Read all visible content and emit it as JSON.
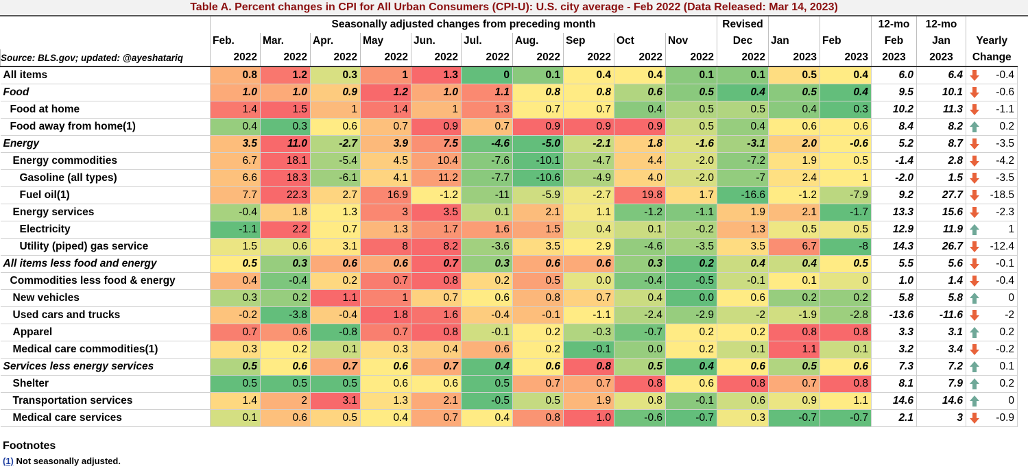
{
  "title": "Table A. Percent changes in CPI for All Urban Consumers (CPI-U): U.S. city average - Feb 2022 (Data Released: Mar 14, 2023)",
  "source_note": "Source: BLS.gov; updated: @ayeshatariq",
  "header": {
    "group": "Seasonally adjusted changes from preceding month",
    "months_top": [
      "Feb.",
      "Mar.",
      "Apr.",
      "May",
      "Jun.",
      "Jul.",
      "Aug.",
      "Sep",
      "Oct",
      "Nov"
    ],
    "months_year": [
      "2022",
      "2022",
      "2022",
      "2022",
      "2022",
      "2022",
      "2022",
      "2022",
      "2022",
      "2022"
    ],
    "revised_top": "Revised",
    "revised_mid": "Dec",
    "revised_year": "2022",
    "jan_top": "Jan",
    "jan_year": "2023",
    "feb_top": "Feb",
    "feb_year": "2023",
    "mo12_feb": [
      "12-mo",
      "Feb",
      "2023"
    ],
    "mo12_jan": [
      "12-mo",
      "Jan",
      "2023"
    ],
    "yearly": [
      "Yearly",
      "Change"
    ]
  },
  "colors": {
    "high": "#f8696b",
    "mid": "#ffeb84",
    "low": "#63be7b",
    "arrow_up": "#6fa898",
    "arrow_down": "#e8623a"
  },
  "rows": [
    {
      "label": "All items",
      "indent": 0,
      "style": "bold",
      "monthly": [
        "0.8",
        "1.2",
        "0.3",
        "1",
        "1.3",
        "0",
        "0.1",
        "0.4",
        "0.4",
        "0.1",
        "0.1",
        "0.5",
        "0.4"
      ],
      "mo12_feb": "6.0",
      "mo12_jan": "6.4",
      "yearly": "-0.4",
      "dir": "down"
    },
    {
      "label": "Food",
      "indent": 0,
      "style": "bolditalic",
      "monthly": [
        "1.0",
        "1.0",
        "0.9",
        "1.2",
        "1.0",
        "1.1",
        "0.8",
        "0.8",
        "0.6",
        "0.5",
        "0.4",
        "0.5",
        "0.4"
      ],
      "mo12_feb": "9.5",
      "mo12_jan": "10.1",
      "yearly": "-0.6",
      "dir": "down"
    },
    {
      "label": "Food at home",
      "indent": 1,
      "style": "normal",
      "monthly": [
        "1.4",
        "1.5",
        "1",
        "1.4",
        "1",
        "1.3",
        "0.7",
        "0.7",
        "0.4",
        "0.5",
        "0.5",
        "0.4",
        "0.3"
      ],
      "mo12_feb": "10.2",
      "mo12_jan": "11.3",
      "yearly": "-1.1",
      "dir": "down"
    },
    {
      "label": "Food away from home(1)",
      "indent": 1,
      "style": "normal",
      "monthly": [
        "0.4",
        "0.3",
        "0.6",
        "0.7",
        "0.9",
        "0.7",
        "0.9",
        "0.9",
        "0.9",
        "0.5",
        "0.4",
        "0.6",
        "0.6"
      ],
      "mo12_feb": "8.4",
      "mo12_jan": "8.2",
      "yearly": "0.2",
      "dir": "up"
    },
    {
      "label": "Energy",
      "indent": 0,
      "style": "bolditalic",
      "monthly": [
        "3.5",
        "11.0",
        "-2.7",
        "3.9",
        "7.5",
        "-4.6",
        "-5.0",
        "-2.1",
        "1.8",
        "-1.6",
        "-3.1",
        "2.0",
        "-0.6"
      ],
      "mo12_feb": "5.2",
      "mo12_jan": "8.7",
      "yearly": "-3.5",
      "dir": "down"
    },
    {
      "label": "Energy commodities",
      "indent": 2,
      "style": "normal",
      "monthly": [
        "6.7",
        "18.1",
        "-5.4",
        "4.5",
        "10.4",
        "-7.6",
        "-10.1",
        "-4.7",
        "4.4",
        "-2.0",
        "-7.2",
        "1.9",
        "0.5"
      ],
      "mo12_feb": "-1.4",
      "mo12_jan": "2.8",
      "yearly": "-4.2",
      "dir": "down"
    },
    {
      "label": "Gasoline (all types)",
      "indent": 3,
      "style": "normal",
      "monthly": [
        "6.6",
        "18.3",
        "-6.1",
        "4.1",
        "11.2",
        "-7.7",
        "-10.6",
        "-4.9",
        "4.0",
        "-2.0",
        "-7",
        "2.4",
        "1"
      ],
      "mo12_feb": "-2.0",
      "mo12_jan": "1.5",
      "yearly": "-3.5",
      "dir": "down"
    },
    {
      "label": "Fuel oil(1)",
      "indent": 3,
      "style": "normal",
      "monthly": [
        "7.7",
        "22.3",
        "2.7",
        "16.9",
        "-1.2",
        "-11",
        "-5.9",
        "-2.7",
        "19.8",
        "1.7",
        "-16.6",
        "-1.2",
        "-7.9"
      ],
      "mo12_feb": "9.2",
      "mo12_jan": "27.7",
      "yearly": "-18.5",
      "dir": "down"
    },
    {
      "label": "Energy services",
      "indent": 2,
      "style": "normal",
      "monthly": [
        "-0.4",
        "1.8",
        "1.3",
        "3",
        "3.5",
        "0.1",
        "2.1",
        "1.1",
        "-1.2",
        "-1.1",
        "1.9",
        "2.1",
        "-1.7"
      ],
      "mo12_feb": "13.3",
      "mo12_jan": "15.6",
      "yearly": "-2.3",
      "dir": "down"
    },
    {
      "label": "Electricity",
      "indent": 3,
      "style": "normal",
      "monthly": [
        "-1.1",
        "2.2",
        "0.7",
        "1.3",
        "1.7",
        "1.6",
        "1.5",
        "0.4",
        "0.1",
        "-0.2",
        "1.3",
        "0.5",
        "0.5"
      ],
      "mo12_feb": "12.9",
      "mo12_jan": "11.9",
      "yearly": "1",
      "dir": "up"
    },
    {
      "label": "Utility (piped) gas service",
      "indent": 3,
      "style": "normal",
      "monthly": [
        "1.5",
        "0.6",
        "3.1",
        "8",
        "8.2",
        "-3.6",
        "3.5",
        "2.9",
        "-4.6",
        "-3.5",
        "3.5",
        "6.7",
        "-8"
      ],
      "mo12_feb": "14.3",
      "mo12_jan": "26.7",
      "yearly": "-12.4",
      "dir": "down"
    },
    {
      "label": "All items less food and energy",
      "indent": 0,
      "style": "bolditalic",
      "monthly": [
        "0.5",
        "0.3",
        "0.6",
        "0.6",
        "0.7",
        "0.3",
        "0.6",
        "0.6",
        "0.3",
        "0.2",
        "0.4",
        "0.4",
        "0.5"
      ],
      "mo12_feb": "5.5",
      "mo12_jan": "5.6",
      "yearly": "-0.1",
      "dir": "down"
    },
    {
      "label": "Commodities less food & energy",
      "indent": 1,
      "style": "normal",
      "monthly": [
        "0.4",
        "-0.4",
        "0.2",
        "0.7",
        "0.8",
        "0.2",
        "0.5",
        "0.0",
        "-0.4",
        "-0.5",
        "-0.1",
        "0.1",
        "0"
      ],
      "mo12_feb": "1.0",
      "mo12_jan": "1.4",
      "yearly": "-0.4",
      "dir": "down"
    },
    {
      "label": "New vehicles",
      "indent": 2,
      "style": "normal",
      "monthly": [
        "0.3",
        "0.2",
        "1.1",
        "1",
        "0.7",
        "0.6",
        "0.8",
        "0.7",
        "0.4",
        "0.0",
        "0.6",
        "0.2",
        "0.2"
      ],
      "mo12_feb": "5.8",
      "mo12_jan": "5.8",
      "yearly": "0",
      "dir": "up"
    },
    {
      "label": "Used cars and trucks",
      "indent": 2,
      "style": "normal",
      "monthly": [
        "-0.2",
        "-3.8",
        "-0.4",
        "1.8",
        "1.6",
        "-0.4",
        "-0.1",
        "-1.1",
        "-2.4",
        "-2.9",
        "-2",
        "-1.9",
        "-2.8"
      ],
      "mo12_feb": "-13.6",
      "mo12_jan": "-11.6",
      "yearly": "-2",
      "dir": "down"
    },
    {
      "label": "Apparel",
      "indent": 2,
      "style": "normal",
      "monthly": [
        "0.7",
        "0.6",
        "-0.8",
        "0.7",
        "0.8",
        "-0.1",
        "0.2",
        "-0.3",
        "-0.7",
        "0.2",
        "0.2",
        "0.8",
        "0.8"
      ],
      "mo12_feb": "3.3",
      "mo12_jan": "3.1",
      "yearly": "0.2",
      "dir": "up"
    },
    {
      "label": "Medical care commodities(1)",
      "indent": 2,
      "style": "normal",
      "monthly": [
        "0.3",
        "0.2",
        "0.1",
        "0.3",
        "0.4",
        "0.6",
        "0.2",
        "-0.1",
        "0.0",
        "0.2",
        "0.1",
        "1.1",
        "0.1"
      ],
      "mo12_feb": "3.2",
      "mo12_jan": "3.4",
      "yearly": "-0.2",
      "dir": "down"
    },
    {
      "label": "Services less energy services",
      "indent": 0,
      "style": "bolditalic",
      "monthly": [
        "0.5",
        "0.6",
        "0.7",
        "0.6",
        "0.7",
        "0.4",
        "0.6",
        "0.8",
        "0.5",
        "0.4",
        "0.6",
        "0.5",
        "0.6"
      ],
      "mo12_feb": "7.3",
      "mo12_jan": "7.2",
      "yearly": "0.1",
      "dir": "up"
    },
    {
      "label": "Shelter",
      "indent": 2,
      "style": "normal",
      "monthly": [
        "0.5",
        "0.5",
        "0.5",
        "0.6",
        "0.6",
        "0.5",
        "0.7",
        "0.7",
        "0.8",
        "0.6",
        "0.8",
        "0.7",
        "0.8"
      ],
      "mo12_feb": "8.1",
      "mo12_jan": "7.9",
      "yearly": "0.2",
      "dir": "up"
    },
    {
      "label": "Transportation services",
      "indent": 2,
      "style": "normal",
      "monthly": [
        "1.4",
        "2",
        "3.1",
        "1.3",
        "2.1",
        "-0.5",
        "0.5",
        "1.9",
        "0.8",
        "-0.1",
        "0.6",
        "0.9",
        "1.1"
      ],
      "mo12_feb": "14.6",
      "mo12_jan": "14.6",
      "yearly": "0",
      "dir": "up"
    },
    {
      "label": "Medical care services",
      "indent": 2,
      "style": "normal",
      "monthly": [
        "0.1",
        "0.6",
        "0.5",
        "0.4",
        "0.7",
        "0.4",
        "0.8",
        "1.0",
        "-0.6",
        "-0.7",
        "0.3",
        "-0.7",
        "-0.7"
      ],
      "mo12_feb": "2.1",
      "mo12_jan": "3",
      "yearly": "-0.9",
      "dir": "down"
    }
  ],
  "footnotes": {
    "heading": "Footnotes",
    "ref": "(1)",
    "text": " Not seasonally adjusted."
  }
}
